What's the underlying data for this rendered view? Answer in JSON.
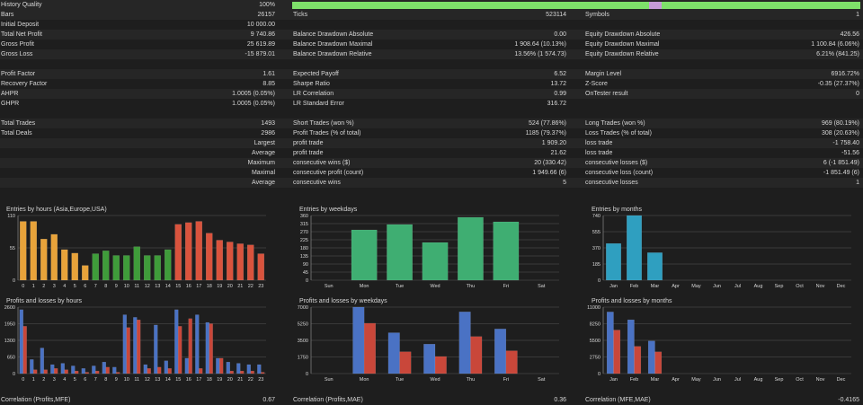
{
  "stats": {
    "history_quality": {
      "label": "History Quality",
      "value": "100%",
      "fill": 1.0
    },
    "rows": [
      {
        "alt": true,
        "c1": [
          "Bars",
          "26157"
        ],
        "c2": [
          "Ticks",
          "523114"
        ],
        "c3": [
          "Symbols",
          "1"
        ]
      },
      {
        "alt": false,
        "c1": [
          "Initial Deposit",
          "10 000.00"
        ],
        "c2": [
          "",
          ""
        ],
        "c3": [
          "",
          ""
        ]
      },
      {
        "alt": true,
        "c1": [
          "Total Net Profit",
          "9 740.86"
        ],
        "c2": [
          "Balance Drawdown Absolute",
          "0.00"
        ],
        "c3": [
          "Equity Drawdown Absolute",
          "426.56"
        ]
      },
      {
        "alt": false,
        "c1": [
          "Gross Profit",
          "25 619.89"
        ],
        "c2": [
          "Balance Drawdown Maximal",
          "1 908.64 (10.13%)"
        ],
        "c3": [
          "Equity Drawdown Maximal",
          "1 100.84 (6.06%)"
        ]
      },
      {
        "alt": true,
        "c1": [
          "Gross Loss",
          "-15 879.01"
        ],
        "c2": [
          "Balance Drawdown Relative",
          "13.56% (1 574.73)"
        ],
        "c3": [
          "Equity Drawdown Relative",
          "6.21% (841.25)"
        ]
      },
      {
        "blank": true
      },
      {
        "alt": true,
        "c1": [
          "Profit Factor",
          "1.61"
        ],
        "c2": [
          "Expected Payoff",
          "6.52"
        ],
        "c3": [
          "Margin Level",
          "6916.72%"
        ]
      },
      {
        "alt": false,
        "c1": [
          "Recovery Factor",
          "8.85"
        ],
        "c2": [
          "Sharpe Ratio",
          "13.72"
        ],
        "c3": [
          "Z-Score",
          "-0.35 (27.37%)"
        ]
      },
      {
        "alt": true,
        "c1": [
          "AHPR",
          "1.0005 (0.05%)"
        ],
        "c2": [
          "LR Correlation",
          "0.99"
        ],
        "c3": [
          "OnTester result",
          "0"
        ]
      },
      {
        "alt": false,
        "c1": [
          "GHPR",
          "1.0005 (0.05%)"
        ],
        "c2": [
          "LR Standard Error",
          "316.72"
        ],
        "c3": [
          "",
          ""
        ]
      },
      {
        "blank": true
      },
      {
        "alt": true,
        "c1": [
          "Total Trades",
          "1493"
        ],
        "c2": [
          "Short Trades (won %)",
          "524 (77.86%)"
        ],
        "c3": [
          "Long Trades (won %)",
          "969 (80.19%)"
        ]
      },
      {
        "alt": false,
        "c1": [
          "Total Deals",
          "2986"
        ],
        "c2": [
          "Profit Trades (% of total)",
          "1185 (79.37%)"
        ],
        "c3": [
          "Loss Trades (% of total)",
          "308 (20.63%)"
        ]
      },
      {
        "alt": true,
        "c1": [
          "",
          "Largest"
        ],
        "c2": [
          "profit trade",
          "1 909.20"
        ],
        "c3": [
          "loss trade",
          "-1 758.40"
        ]
      },
      {
        "alt": false,
        "c1": [
          "",
          "Average"
        ],
        "c2": [
          "profit trade",
          "21.62"
        ],
        "c3": [
          "loss trade",
          "-51.56"
        ]
      },
      {
        "alt": true,
        "c1": [
          "",
          "Maximum"
        ],
        "c2": [
          "consecutive wins ($)",
          "20 (330.42)"
        ],
        "c3": [
          "consecutive losses ($)",
          "6 (-1 851.49)"
        ]
      },
      {
        "alt": false,
        "c1": [
          "",
          "Maximal"
        ],
        "c2": [
          "consecutive profit (count)",
          "1 949.66 (6)"
        ],
        "c3": [
          "consecutive loss (count)",
          "-1 851.49 (6)"
        ]
      },
      {
        "alt": true,
        "c1": [
          "",
          "Average"
        ],
        "c2": [
          "consecutive wins",
          "5"
        ],
        "c3": [
          "consecutive losses",
          "1"
        ]
      }
    ]
  },
  "colors": {
    "morning": "#e8a33a",
    "midday": "#3f9c3a",
    "evening": "#d9533d",
    "weekday_bar": "#3fae72",
    "month_bar": "#2f9fc0",
    "profit": "#4a72c4",
    "loss": "#c9473a",
    "grid": "#555555",
    "axis_text": "#d7d7d7"
  },
  "chart_data": [
    {
      "type": "bar",
      "title": "Entries by hours (Asia,Europe,USA)",
      "categories": [
        "0",
        "1",
        "2",
        "3",
        "4",
        "5",
        "6",
        "7",
        "8",
        "9",
        "10",
        "11",
        "12",
        "13",
        "14",
        "15",
        "16",
        "17",
        "18",
        "19",
        "20",
        "21",
        "22",
        "23"
      ],
      "values": [
        100,
        100,
        70,
        78,
        52,
        46,
        25,
        45,
        50,
        42,
        42,
        57,
        42,
        42,
        52,
        95,
        98,
        100,
        80,
        68,
        65,
        62,
        60,
        45
      ],
      "yticks": [
        "0",
        "55",
        "110"
      ],
      "ylim": [
        0,
        110
      ]
    },
    {
      "type": "bar",
      "title": "Entries by weekdays",
      "categories": [
        "Sun",
        "Mon",
        "Tue",
        "Wed",
        "Thu",
        "Fri",
        "Sat"
      ],
      "values": [
        0,
        280,
        310,
        210,
        350,
        325,
        0
      ],
      "yticks": [
        "0",
        "45",
        "90",
        "135",
        "180",
        "225",
        "270",
        "315",
        "360"
      ],
      "ylim": [
        0,
        360
      ]
    },
    {
      "type": "bar",
      "title": "Entries by months",
      "categories": [
        "Jan",
        "Feb",
        "Mar",
        "Apr",
        "May",
        "Jun",
        "Jul",
        "Aug",
        "Sep",
        "Oct",
        "Nov",
        "Dec"
      ],
      "values": [
        420,
        740,
        315,
        0,
        0,
        0,
        0,
        0,
        0,
        0,
        0,
        0
      ],
      "yticks": [
        "0",
        "185",
        "370",
        "555",
        "740"
      ],
      "ylim": [
        0,
        740
      ]
    },
    {
      "type": "bar",
      "title": "Profits and losses by hours",
      "categories": [
        "0",
        "1",
        "2",
        "3",
        "4",
        "5",
        "6",
        "7",
        "8",
        "9",
        "10",
        "11",
        "12",
        "13",
        "14",
        "15",
        "16",
        "17",
        "18",
        "19",
        "20",
        "21",
        "22",
        "23"
      ],
      "series": [
        {
          "values": [
            2500,
            550,
            1000,
            350,
            400,
            300,
            200,
            300,
            450,
            250,
            2300,
            2200,
            350,
            1900,
            500,
            2500,
            600,
            2300,
            2000,
            600,
            450,
            400,
            350,
            350
          ]
        },
        {
          "values": [
            1850,
            150,
            150,
            200,
            150,
            100,
            50,
            100,
            250,
            50,
            1800,
            2100,
            200,
            250,
            200,
            1850,
            2150,
            200,
            1950,
            600,
            100,
            100,
            100,
            50
          ]
        }
      ],
      "yticks": [
        "0",
        "650",
        "1300",
        "1950",
        "2600"
      ],
      "ylim": [
        0,
        2600
      ]
    },
    {
      "type": "bar",
      "title": "Profits and losses by weekdays",
      "categories": [
        "Sun",
        "Mon",
        "Tue",
        "Wed",
        "Thu",
        "Fri",
        "Sat"
      ],
      "series": [
        {
          "values": [
            0,
            7000,
            4300,
            3100,
            6500,
            4700,
            0
          ]
        },
        {
          "values": [
            0,
            5300,
            2300,
            1800,
            3900,
            2400,
            0
          ]
        }
      ],
      "yticks": [
        "0",
        "1750",
        "3500",
        "5250",
        "7000"
      ],
      "ylim": [
        0,
        7000
      ]
    },
    {
      "type": "bar",
      "title": "Profits and losses by months",
      "categories": [
        "Jan",
        "Feb",
        "Mar",
        "Apr",
        "May",
        "Jun",
        "Jul",
        "Aug",
        "Sep",
        "Oct",
        "Nov",
        "Dec"
      ],
      "series": [
        {
          "values": [
            10200,
            8900,
            5400,
            0,
            0,
            0,
            0,
            0,
            0,
            0,
            0,
            0
          ]
        },
        {
          "values": [
            7200,
            4500,
            3600,
            0,
            0,
            0,
            0,
            0,
            0,
            0,
            0,
            0
          ]
        }
      ],
      "yticks": [
        "0",
        "2750",
        "5500",
        "8250",
        "11000"
      ],
      "ylim": [
        0,
        11000
      ]
    }
  ],
  "footer": [
    {
      "label": "Correlation (Profits,MFE)",
      "value": "0.67"
    },
    {
      "label": "Correlation (Profits,MAE)",
      "value": "0.36"
    },
    {
      "label": "Correlation (MFE,MAE)",
      "value": "-0.4165"
    }
  ]
}
